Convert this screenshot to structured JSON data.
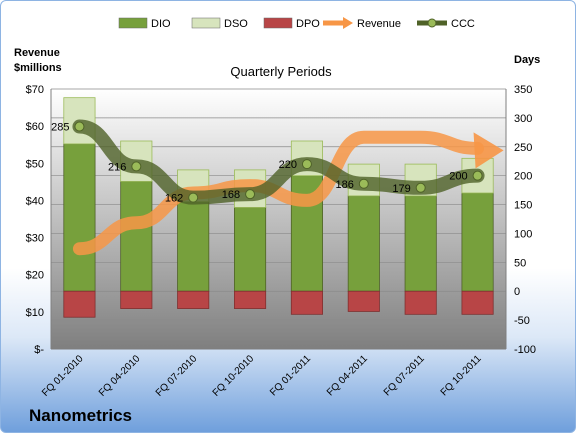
{
  "company": "Nanometrics",
  "chart_data": {
    "type": "bar",
    "title": "Quarterly Periods",
    "categories": [
      "FQ 01-2010",
      "FQ 04-2010",
      "FQ 07-2010",
      "FQ 10-2010",
      "FQ 01-2011",
      "FQ 04-2011",
      "FQ 07-2011",
      "FQ 10-2011"
    ],
    "left_axis": {
      "label_line1": "Revenue",
      "label_line2": "$millions",
      "ylim": [
        0,
        70
      ],
      "ticks": [
        "$-",
        "$10",
        "$20",
        "$30",
        "$40",
        "$50",
        "$60",
        "$70"
      ]
    },
    "right_axis": {
      "label": "Days",
      "ylim": [
        -100,
        350
      ],
      "ticks": [
        "-100",
        "-50",
        "0",
        "50",
        "100",
        "150",
        "200",
        "250",
        "300",
        "350"
      ]
    },
    "series": [
      {
        "name": "DIO",
        "axis": "right",
        "kind": "stacked-bar",
        "color": "#77a03c",
        "values": [
          255,
          190,
          155,
          145,
          200,
          165,
          165,
          170
        ]
      },
      {
        "name": "DSO",
        "axis": "right",
        "kind": "stacked-bar",
        "color": "#d7e4bd",
        "values": [
          80,
          70,
          55,
          65,
          60,
          55,
          55,
          60
        ]
      },
      {
        "name": "DPO",
        "axis": "right",
        "kind": "negative-bar",
        "color": "#b84546",
        "values": [
          -45,
          -30,
          -30,
          -30,
          -40,
          -35,
          -40,
          -40
        ]
      },
      {
        "name": "Revenue",
        "axis": "left",
        "kind": "line",
        "color": "#f79646",
        "values": [
          27,
          34,
          42,
          44,
          40,
          57,
          57,
          54
        ]
      },
      {
        "name": "CCC",
        "axis": "right",
        "kind": "line",
        "color": "#4f6228",
        "values": [
          285,
          216,
          162,
          168,
          220,
          186,
          179,
          200
        ],
        "labels": [
          "285",
          "216",
          "162",
          "168",
          "220",
          "186",
          "179",
          "200"
        ]
      }
    ],
    "legend": "top",
    "grid": true
  }
}
